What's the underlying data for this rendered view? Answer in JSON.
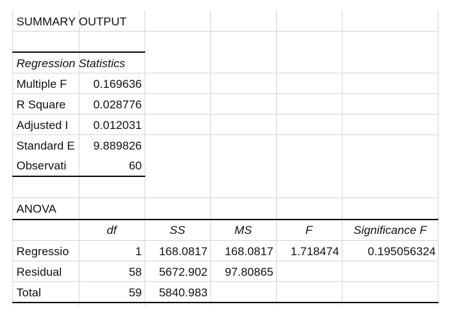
{
  "title": "SUMMARY OUTPUT",
  "regression_statistics": {
    "header": "Regression Statistics",
    "rows": [
      {
        "label": "Multiple F",
        "value": "0.169636"
      },
      {
        "label": "R Square",
        "value": "0.028776"
      },
      {
        "label": "Adjusted I",
        "value": "0.012031"
      },
      {
        "label": "Standard E",
        "value": "9.889826"
      },
      {
        "label": "Observati",
        "value": "60"
      }
    ]
  },
  "anova": {
    "title": "ANOVA",
    "headers": [
      "",
      "df",
      "SS",
      "MS",
      "F",
      "Significance F"
    ],
    "rows": [
      [
        "Regressio",
        "1",
        "168.0817",
        "168.0817",
        "1.718474",
        "0.195056324"
      ],
      [
        "Residual",
        "58",
        "5672.902",
        "97.80865",
        "",
        ""
      ],
      [
        "Total",
        "59",
        "5840.983",
        "",
        "",
        ""
      ]
    ]
  }
}
